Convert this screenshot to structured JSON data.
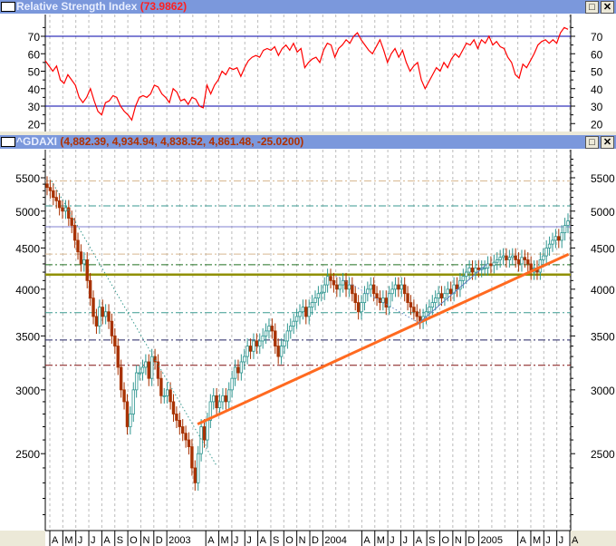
{
  "rsi_panel": {
    "title": "Relative Strength Index",
    "value": "(73.9862)",
    "value_color": "#ff0000",
    "maximize_icon": "maximize-icon",
    "close_icon": "close-icon"
  },
  "price_panel": {
    "title": "^GDAXI",
    "values": "(4,882.39, 4,934.94, 4,838.52, 4,861.48, -25.0200)",
    "value_color": "#b03000",
    "maximize_icon": "maximize-icon",
    "close_icon": "close-icon"
  },
  "colors": {
    "titlebar": "#7b98dc",
    "up_candle": "#2e9690",
    "down_candle": "#a83200",
    "rsi_line": "#ff0000",
    "rsi_levels": "#0000aa",
    "trendline": "#ff6a20"
  },
  "chart_data": [
    {
      "type": "line",
      "title": "Relative Strength Index",
      "ylim": [
        15,
        80
      ],
      "yticks": [
        20,
        30,
        40,
        50,
        60,
        70
      ],
      "ytick_labels": [
        "20",
        "30",
        "40",
        "50",
        "60",
        "70"
      ],
      "levels": [
        30,
        70
      ],
      "grid": "vertical dashed monthly",
      "values": [
        56,
        53,
        50,
        53,
        45,
        43,
        48,
        45,
        42,
        35,
        32,
        35,
        40,
        33,
        27,
        25,
        32,
        33,
        36,
        35,
        30,
        27,
        25,
        22,
        30,
        35,
        36,
        35,
        37,
        42,
        41,
        37,
        35,
        32,
        40,
        38,
        33,
        34,
        31,
        35,
        34,
        30,
        29,
        42,
        37,
        42,
        45,
        50,
        48,
        52,
        51,
        52,
        47,
        52,
        56,
        58,
        59,
        58,
        62,
        63,
        62,
        64,
        59,
        63,
        65,
        62,
        66,
        61,
        63,
        52,
        55,
        57,
        58,
        55,
        62,
        66,
        65,
        58,
        63,
        65,
        68,
        66,
        70,
        72,
        68,
        65,
        62,
        60,
        64,
        68,
        62,
        55,
        60,
        63,
        58,
        62,
        55,
        50,
        53,
        55,
        45,
        40,
        44,
        48,
        52,
        50,
        55,
        52,
        57,
        60,
        58,
        62,
        66,
        65,
        68,
        63,
        68,
        66,
        70,
        65,
        67,
        64,
        63,
        58,
        55,
        48,
        46,
        54,
        52,
        56,
        60,
        65,
        67,
        68,
        66,
        68,
        66,
        72,
        75,
        73.99
      ]
    },
    {
      "type": "candlestick",
      "title": "^GDAXI",
      "scale": "log",
      "ylim": [
        2050,
        5900
      ],
      "yticks": [
        2500,
        3000,
        3500,
        4000,
        4500,
        5000,
        5500
      ],
      "ytick_labels": [
        "2500",
        "3000",
        "3500",
        "4000",
        "4500",
        "5000",
        "5500"
      ],
      "period": "weekly",
      "x_range": [
        "2002-03",
        "2005-07"
      ],
      "month_labels": [
        "A",
        "M",
        "J",
        "J",
        "A",
        "S",
        "O",
        "N",
        "D",
        "2003",
        "",
        "",
        "A",
        "M",
        "J",
        "J",
        "A",
        "S",
        "O",
        "N",
        "D",
        "2004",
        "",
        "",
        "A",
        "M",
        "J",
        "J",
        "A",
        "S",
        "O",
        "N",
        "D",
        "2005",
        "",
        "",
        "A",
        "M",
        "J",
        "J",
        "A"
      ],
      "closes": [
        5350,
        5300,
        5200,
        5150,
        5050,
        5000,
        5050,
        4900,
        4800,
        4600,
        4450,
        4300,
        4350,
        4100,
        3900,
        3700,
        3600,
        3800,
        3700,
        3750,
        3650,
        3500,
        3400,
        3200,
        3000,
        2900,
        2700,
        2800,
        3000,
        3150,
        3150,
        3200,
        3250,
        3100,
        3300,
        3250,
        3100,
        2950,
        2950,
        3000,
        2900,
        2800,
        2750,
        2700,
        2650,
        2600,
        2550,
        2400,
        2300,
        2500,
        2700,
        2600,
        2750,
        2900,
        2950,
        2850,
        2900,
        2950,
        2900,
        3000,
        3100,
        3200,
        3150,
        3250,
        3300,
        3400,
        3350,
        3450,
        3400,
        3450,
        3500,
        3550,
        3600,
        3550,
        3400,
        3300,
        3400,
        3450,
        3550,
        3600,
        3650,
        3700,
        3750,
        3800,
        3700,
        3800,
        3850,
        3900,
        3950,
        3965,
        4050,
        4150,
        4100,
        4050,
        4000,
        4050,
        4100,
        4000,
        4050,
        3950,
        3850,
        3750,
        3850,
        3950,
        4000,
        4050,
        3950,
        3900,
        3850,
        3900,
        3800,
        3950,
        4000,
        4050,
        4000,
        4050,
        3950,
        3850,
        3800,
        3750,
        3700,
        3650,
        3700,
        3750,
        3800,
        3850,
        3900,
        3950,
        3900,
        3950,
        4000,
        3950,
        4050,
        4000,
        4100,
        4150,
        4200,
        4250,
        4200,
        4250,
        4230,
        4250,
        4250,
        4300,
        4280,
        4320,
        4350,
        4380,
        4400,
        4350,
        4380,
        4400,
        4350,
        4300,
        4380,
        4350,
        4300,
        4200,
        4250,
        4200,
        4350,
        4400,
        4500,
        4550,
        4600,
        4650,
        4600,
        4700,
        4800,
        4861.48
      ],
      "horizontal_lines": [
        {
          "value": 5450,
          "color": "#d8b890",
          "style": "dash-dot"
        },
        {
          "value": 5075,
          "color": "#3a9a90",
          "style": "dash-dot"
        },
        {
          "value": 4782,
          "color": "#8080d0",
          "style": "solid"
        },
        {
          "value": 4423,
          "color": "#d8b890",
          "style": "dash-dot"
        },
        {
          "value": 4290,
          "color": "#207020",
          "style": "dash-dot"
        },
        {
          "value": 4170,
          "color": "#909000",
          "style": "thick"
        },
        {
          "value": 3740,
          "color": "#3a9a90",
          "style": "dash-dot"
        },
        {
          "value": 3459,
          "color": "#202060",
          "style": "dash-dot"
        },
        {
          "value": 3218,
          "color": "#801010",
          "style": "dash-dot"
        }
      ],
      "trendlines": [
        {
          "from": [
            "2003-03-12",
            2720
          ],
          "to": [
            "2005-07-28",
            4420
          ],
          "color": "#ff6a20",
          "style": "thick"
        },
        {
          "from": [
            "2002-04-05",
            5450
          ],
          "to": [
            "2003-04-25",
            2420
          ],
          "color": "#3a9a90",
          "style": "dotted"
        },
        {
          "from": [
            "2004-08-10",
            3620
          ],
          "to": [
            "2005-01-20",
            4300
          ],
          "color": "#6080c0",
          "style": "thin"
        },
        {
          "from": [
            "2004-02-01",
            4160
          ],
          "to": [
            "2004-08-10",
            3640
          ],
          "color": "#6080c0",
          "style": "dotted"
        }
      ]
    }
  ]
}
